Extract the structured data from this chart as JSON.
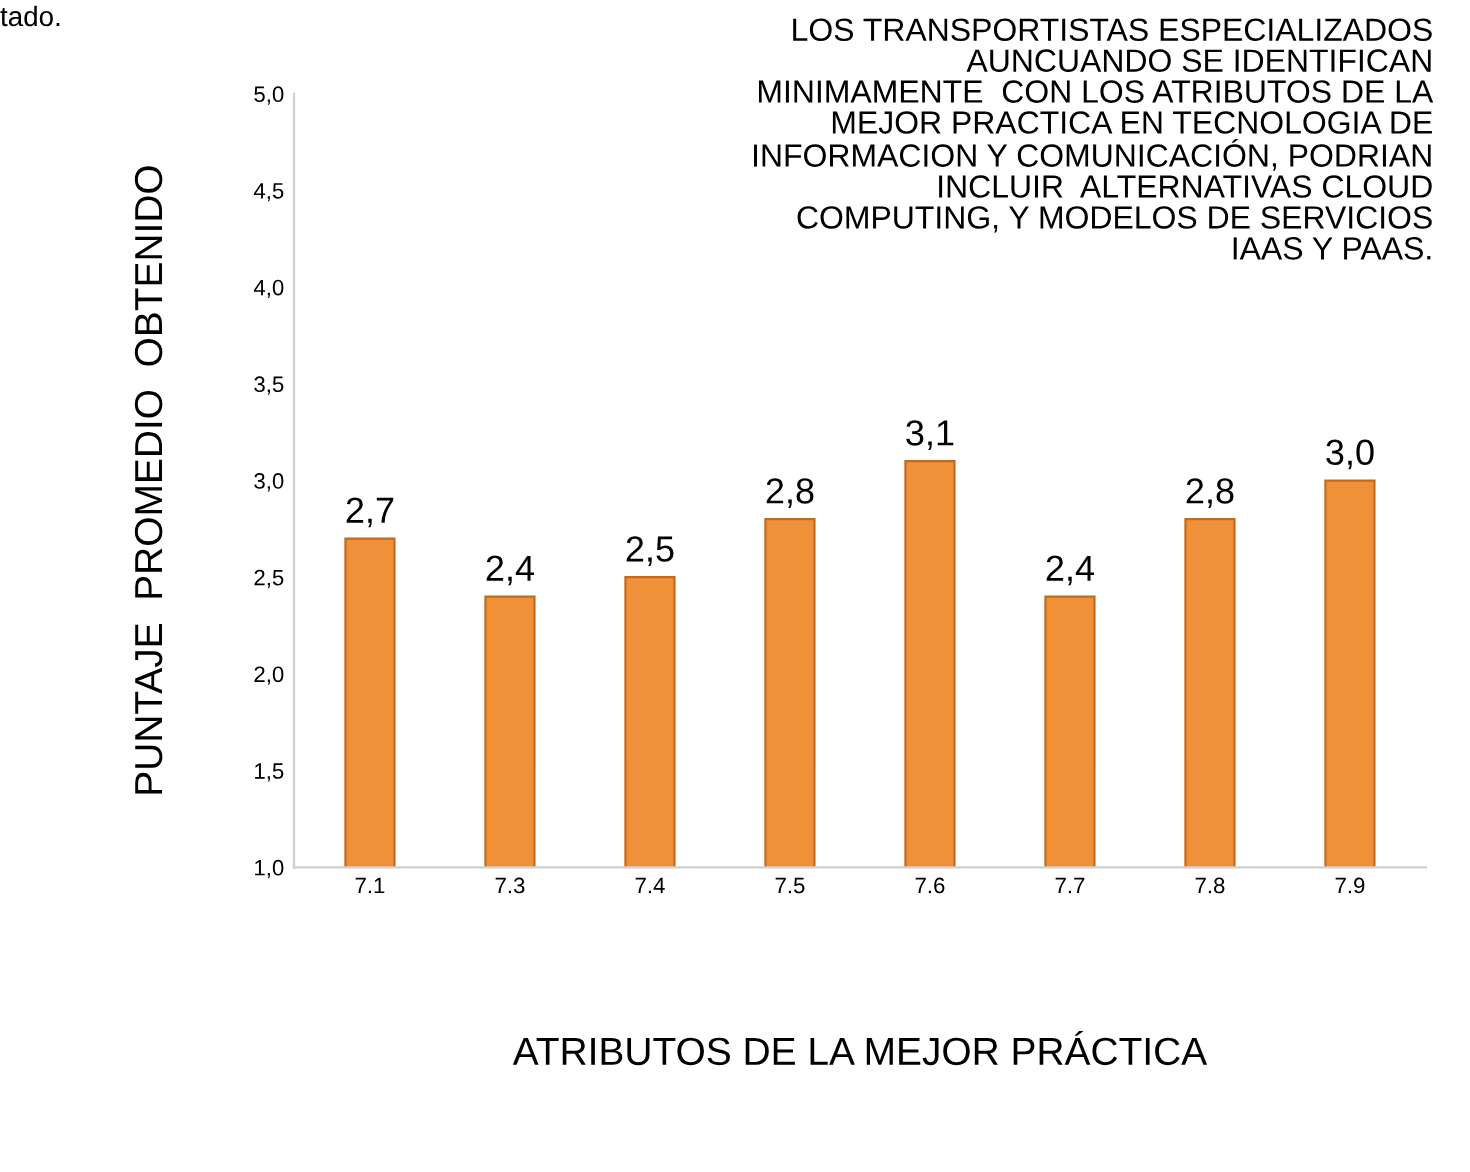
{
  "chart_data": {
    "type": "bar",
    "categories": [
      "7.1",
      "7.3",
      "7.4",
      "7.5",
      "7.6",
      "7.7",
      "7.8",
      "7.9"
    ],
    "values": [
      2.7,
      2.4,
      2.5,
      2.8,
      3.1,
      2.4,
      2.8,
      3.0
    ],
    "value_labels": [
      "2,7",
      "2,4",
      "2,5",
      "2,8",
      "3,1",
      "2,4",
      "2,8",
      "3,0"
    ],
    "color": "#f0913a",
    "ylim": [
      1.0,
      5.0
    ],
    "yticks": [
      {
        "value": 1.0,
        "label": "1,0"
      },
      {
        "value": 1.5,
        "label": "1,5"
      },
      {
        "value": 2.0,
        "label": "2,0"
      },
      {
        "value": 2.5,
        "label": "2,5"
      },
      {
        "value": 3.0,
        "label": "3,0"
      },
      {
        "value": 3.5,
        "label": "3,5"
      },
      {
        "value": 4.0,
        "label": "4,0"
      },
      {
        "value": 4.5,
        "label": "4,5"
      },
      {
        "value": 5.0,
        "label": "5,0"
      }
    ],
    "ylabel": "PUNTAJE  PROMEDIO  OBTENIDO",
    "xlabel": "ATRIBUTOS DE LA MEJOR PRÁCTICA",
    "annotations": [
      "tado.",
      "LOS TRANSPORTISTAS ESPECIALIZADOS\nAUNCUANDO SE IDENTIFICAN\nMINIMAMENTE  CON LOS ATRIBUTOS DE LA\nMEJOR PRACTICA EN TECNOLOGIA DE\nINFORMACION Y COMUNICACIÓN, PODRIAN\nINCLUIR  ALTERNATIVAS CLOUD\nCOMPUTING, Y MODELOS DE SERVICIOS\nIAAS Y PAAS."
    ],
    "grid": false,
    "legend": false
  }
}
